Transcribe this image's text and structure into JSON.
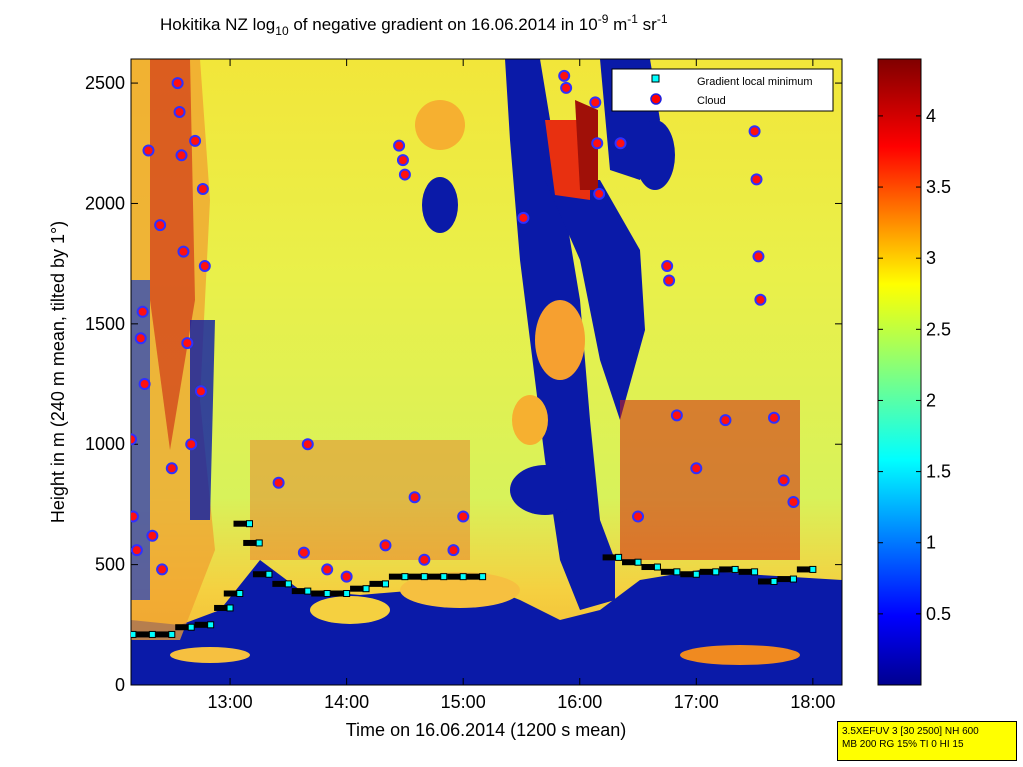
{
  "chart_data": {
    "type": "heatmap",
    "title": "Hokitika NZ log",
    "title_sub": "10",
    "title_rest": " of negative gradient on 16.06.2014 in 10",
    "title_sup1": "-9",
    "title_m": " m",
    "title_sup2": "-1",
    "title_sr": " sr",
    "title_sup3": "-1",
    "xlabel": "Time on 16.06.2014 (1200 s mean)",
    "ylabel": "Height in m (240 m mean, tilted by 1°)",
    "x_ticks": [
      "13:00",
      "14:00",
      "15:00",
      "16:00",
      "17:00",
      "18:00"
    ],
    "y_ticks": [
      "0",
      "500",
      "1000",
      "1500",
      "2000",
      "2500"
    ],
    "colorbar_ticks": [
      "0.5",
      "1",
      "1.5",
      "2",
      "2.5",
      "3",
      "3.5",
      "4"
    ],
    "xlim": [
      "12:09",
      "18:15"
    ],
    "ylim": [
      0,
      2600
    ],
    "clim": [
      0,
      4.4
    ],
    "colormap": "jet",
    "legend": {
      "position": "top-right",
      "entries": [
        {
          "label": "Gradient local minimum",
          "marker": "square",
          "color": "#00ffff"
        },
        {
          "label": "Cloud",
          "marker": "circle",
          "color": "#ff0000"
        }
      ]
    },
    "gradient_local_minimum": [
      {
        "t": "12:10",
        "h": 210
      },
      {
        "t": "12:20",
        "h": 210
      },
      {
        "t": "12:30",
        "h": 210
      },
      {
        "t": "12:40",
        "h": 240
      },
      {
        "t": "12:50",
        "h": 250
      },
      {
        "t": "13:00",
        "h": 320
      },
      {
        "t": "13:05",
        "h": 380
      },
      {
        "t": "13:10",
        "h": 670
      },
      {
        "t": "13:15",
        "h": 590
      },
      {
        "t": "13:20",
        "h": 460
      },
      {
        "t": "13:30",
        "h": 420
      },
      {
        "t": "13:40",
        "h": 390
      },
      {
        "t": "13:50",
        "h": 380
      },
      {
        "t": "14:00",
        "h": 380
      },
      {
        "t": "14:10",
        "h": 400
      },
      {
        "t": "14:20",
        "h": 420
      },
      {
        "t": "14:30",
        "h": 450
      },
      {
        "t": "14:40",
        "h": 450
      },
      {
        "t": "14:50",
        "h": 450
      },
      {
        "t": "15:00",
        "h": 450
      },
      {
        "t": "15:10",
        "h": 450
      },
      {
        "t": "16:20",
        "h": 530
      },
      {
        "t": "16:30",
        "h": 510
      },
      {
        "t": "16:40",
        "h": 490
      },
      {
        "t": "16:50",
        "h": 470
      },
      {
        "t": "17:00",
        "h": 460
      },
      {
        "t": "17:10",
        "h": 470
      },
      {
        "t": "17:20",
        "h": 480
      },
      {
        "t": "17:30",
        "h": 470
      },
      {
        "t": "17:40",
        "h": 430
      },
      {
        "t": "17:50",
        "h": 440
      },
      {
        "t": "18:00",
        "h": 480
      }
    ],
    "cloud": [
      {
        "t": "12:09",
        "h": 1020
      },
      {
        "t": "12:10",
        "h": 700
      },
      {
        "t": "12:12",
        "h": 560
      },
      {
        "t": "12:14",
        "h": 1440
      },
      {
        "t": "12:15",
        "h": 1550
      },
      {
        "t": "12:16",
        "h": 1250
      },
      {
        "t": "12:18",
        "h": 2220
      },
      {
        "t": "12:24",
        "h": 1910
      },
      {
        "t": "12:33",
        "h": 2500
      },
      {
        "t": "12:34",
        "h": 2380
      },
      {
        "t": "12:35",
        "h": 2200
      },
      {
        "t": "12:36",
        "h": 1800
      },
      {
        "t": "12:38",
        "h": 1420
      },
      {
        "t": "12:42",
        "h": 2260
      },
      {
        "t": "12:46",
        "h": 2060
      },
      {
        "t": "12:47",
        "h": 1740
      },
      {
        "t": "12:40",
        "h": 1000
      },
      {
        "t": "12:45",
        "h": 1220
      },
      {
        "t": "12:30",
        "h": 900
      },
      {
        "t": "12:20",
        "h": 620
      },
      {
        "t": "12:25",
        "h": 480
      },
      {
        "t": "13:25",
        "h": 840
      },
      {
        "t": "13:38",
        "h": 550
      },
      {
        "t": "13:40",
        "h": 1000
      },
      {
        "t": "13:50",
        "h": 480
      },
      {
        "t": "14:00",
        "h": 450
      },
      {
        "t": "14:20",
        "h": 580
      },
      {
        "t": "14:27",
        "h": 2240
      },
      {
        "t": "14:29",
        "h": 2180
      },
      {
        "t": "14:30",
        "h": 2120
      },
      {
        "t": "14:35",
        "h": 780
      },
      {
        "t": "14:40",
        "h": 520
      },
      {
        "t": "14:55",
        "h": 560
      },
      {
        "t": "15:00",
        "h": 700
      },
      {
        "t": "15:31",
        "h": 1940
      },
      {
        "t": "15:52",
        "h": 2530
      },
      {
        "t": "15:53",
        "h": 2480
      },
      {
        "t": "16:08",
        "h": 2420
      },
      {
        "t": "16:09",
        "h": 2250
      },
      {
        "t": "16:10",
        "h": 2040
      },
      {
        "t": "16:21",
        "h": 2250
      },
      {
        "t": "16:30",
        "h": 700
      },
      {
        "t": "16:45",
        "h": 1740
      },
      {
        "t": "16:46",
        "h": 1680
      },
      {
        "t": "16:50",
        "h": 1120
      },
      {
        "t": "17:00",
        "h": 900
      },
      {
        "t": "17:15",
        "h": 1100
      },
      {
        "t": "17:30",
        "h": 2300
      },
      {
        "t": "17:31",
        "h": 2100
      },
      {
        "t": "17:32",
        "h": 1780
      },
      {
        "t": "17:33",
        "h": 1600
      },
      {
        "t": "17:40",
        "h": 1110
      },
      {
        "t": "17:45",
        "h": 850
      },
      {
        "t": "17:50",
        "h": 760
      }
    ]
  },
  "info_box": {
    "line1": "3.5XEFUV 3 [30 2500] NH 600",
    "line2": "MB 200 RG 15% TI 0 HI 15"
  }
}
